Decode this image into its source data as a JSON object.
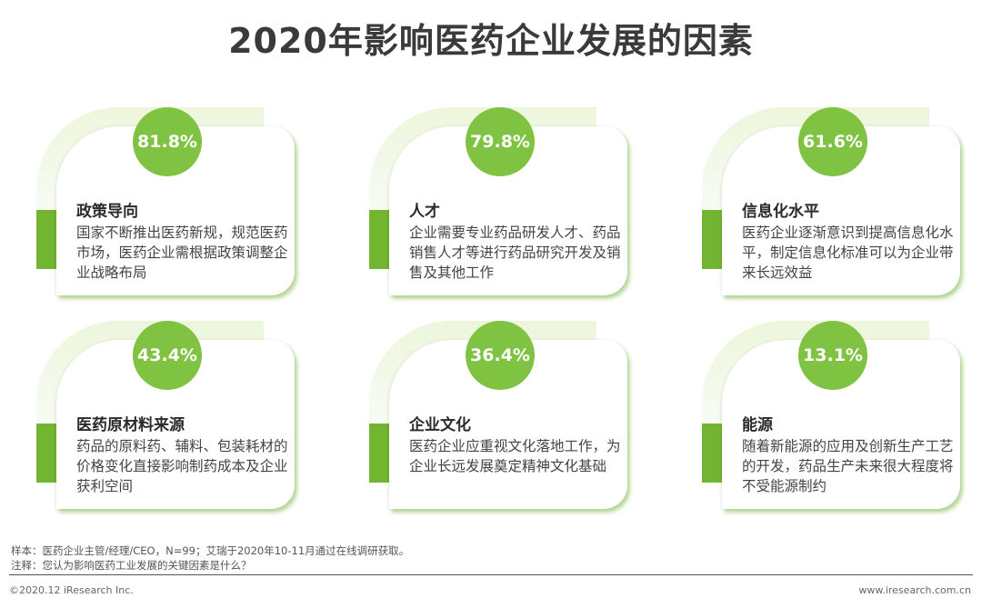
{
  "title": "2020年影响医药企业发展的因素",
  "cards": [
    {
      "percent": "81.8%",
      "heading": "政策导向",
      "description": "国家不断推出医药新规，规范医药市场，医药企业需根据政策调整企业战略布局"
    },
    {
      "percent": "79.8%",
      "heading": "人才",
      "description": "企业需要专业药品研发人才、药品销售人才等进行药品研究开发及销售及其他工作"
    },
    {
      "percent": "61.6%",
      "heading": "信息化水平",
      "description": "医药企业逐渐意识到提高信息化水平，制定信息化标准可以为企业带来长远效益"
    },
    {
      "percent": "43.4%",
      "heading": "医药原材料来源",
      "description": "药品的原料药、辅料、包装耗材的价格变化直接影响制药成本及企业获利空间"
    },
    {
      "percent": "36.4%",
      "heading": "企业文化",
      "description": "医药企业应重视文化落地工作，为企业长远发展奠定精神文化基础"
    },
    {
      "percent": "13.1%",
      "heading": "能源",
      "description": "随着新能源的应用及创新生产工艺的开发，药品生产未来很大程度将不受能源制约"
    }
  ],
  "notes": {
    "sample": "样本：医药企业主管/经理/CEO，N=99；艾瑞于2020年10-11月通过在线调研获取。",
    "annotation": "注释：您认为影响医药工业发展的关键因素是什么？"
  },
  "footer": {
    "copyright": "©2020.12 iResearch Inc.",
    "website": "www.iresearch.com.cn"
  },
  "colors": {
    "accent_green": "#80c342",
    "bar_green": "#72b531"
  }
}
